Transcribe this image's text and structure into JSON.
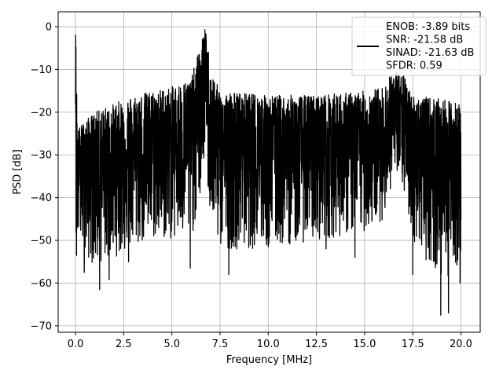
{
  "chart_data": {
    "type": "line",
    "title": "",
    "xlabel": "Frequency [MHz]",
    "ylabel": "PSD [dB]",
    "xlim": [
      -0.9,
      21.0
    ],
    "ylim": [
      -71.5,
      3.5
    ],
    "xticks": [
      0.0,
      2.5,
      5.0,
      7.5,
      10.0,
      12.5,
      15.0,
      17.5,
      20.0
    ],
    "xtick_labels": [
      "0.0",
      "2.5",
      "5.0",
      "7.5",
      "10.0",
      "12.5",
      "15.0",
      "17.5",
      "20.0"
    ],
    "yticks": [
      0,
      -10,
      -20,
      -30,
      -40,
      -50,
      -60,
      -70
    ],
    "ytick_labels": [
      "0",
      "−10",
      "−20",
      "−30",
      "−40",
      "−50",
      "−60",
      "−70"
    ],
    "grid": true,
    "legend": {
      "placement": "upper-right",
      "entries": [
        "ENOB: -3.89 bits",
        "SNR: -21.58 dB",
        "SINAD: -21.63 dB",
        "SFDR: 0.59"
      ]
    },
    "series": [
      {
        "color": "#000000",
        "x_range": [
          0.0,
          20.0
        ],
        "description_points": {
          "x": [
            0.0,
            0.02,
            0.1,
            0.5,
            1.0,
            2.0,
            3.0,
            4.0,
            5.0,
            6.0,
            6.5,
            6.7,
            6.8,
            7.0,
            7.5,
            10.0,
            12.5,
            15.0,
            16.0,
            16.5,
            17.0,
            17.5,
            19.0,
            20.0
          ],
          "upper": [
            -18,
            -2,
            -24,
            -22,
            -20,
            -18,
            -16,
            -15,
            -14,
            -12,
            -4,
            -0.5,
            -1,
            -10,
            -15,
            -16,
            -16,
            -15,
            -14,
            -10,
            -11,
            -16,
            -17,
            -18
          ],
          "lower": [
            -50,
            -54,
            -50,
            -54,
            -56,
            -54,
            -52,
            -50,
            -50,
            -50,
            -40,
            -30,
            -35,
            -45,
            -52,
            -52,
            -50,
            -48,
            -45,
            -35,
            -38,
            -50,
            -60,
            -55
          ],
          "median": [
            -30,
            -30,
            -32,
            -32,
            -32,
            -31,
            -30,
            -29,
            -28,
            -27,
            -20,
            -12,
            -14,
            -25,
            -28,
            -29,
            -29,
            -29,
            -28,
            -22,
            -24,
            -29,
            -30,
            -30
          ]
        },
        "deep_dips": [
          {
            "x": 0.05,
            "y": -53.5
          },
          {
            "x": 0.45,
            "y": -57.5
          },
          {
            "x": 1.25,
            "y": -61.5
          },
          {
            "x": 1.75,
            "y": -59.2
          },
          {
            "x": 2.75,
            "y": -55.0
          },
          {
            "x": 5.95,
            "y": -56.5
          },
          {
            "x": 7.95,
            "y": -58.0
          },
          {
            "x": 10.0,
            "y": -51.5
          },
          {
            "x": 13.0,
            "y": -52.0
          },
          {
            "x": 14.5,
            "y": -54.0
          },
          {
            "x": 17.5,
            "y": -58.0
          },
          {
            "x": 18.95,
            "y": -67.5
          },
          {
            "x": 19.35,
            "y": -67.0
          },
          {
            "x": 19.6,
            "y": -53.5
          },
          {
            "x": 19.95,
            "y": -60.0
          }
        ]
      }
    ]
  }
}
